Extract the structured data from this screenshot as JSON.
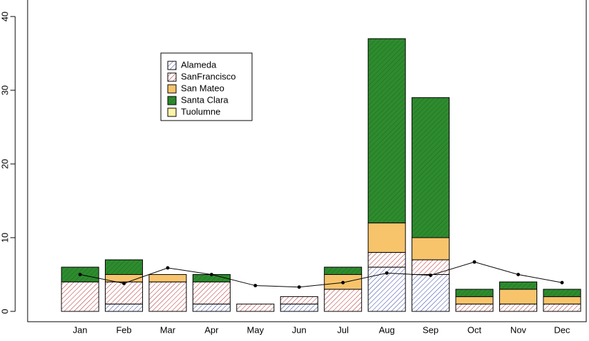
{
  "chart_data": {
    "type": "bar",
    "categories": [
      "Jan",
      "Feb",
      "Mar",
      "Apr",
      "May",
      "Jun",
      "Jul",
      "Aug",
      "Sep",
      "Oct",
      "Nov",
      "Dec"
    ],
    "stacked": true,
    "series": [
      {
        "name": "Alameda",
        "color": "#2a3aa0",
        "background": "#ffffff",
        "values": [
          0,
          1,
          0,
          1,
          0,
          1,
          0,
          6,
          5,
          0,
          0,
          0
        ]
      },
      {
        "name": "SanFrancisco",
        "color": "#b22222",
        "background": "#ffffff",
        "values": [
          4,
          3,
          4,
          3,
          1,
          1,
          3,
          2,
          2,
          1,
          1,
          1
        ]
      },
      {
        "name": "San Mateo",
        "color": "#f7c46c",
        "background": "#f7c46c",
        "values": [
          0,
          1,
          1,
          0,
          0,
          0,
          2,
          4,
          3,
          1,
          2,
          1
        ]
      },
      {
        "name": "Santa Clara",
        "color": "#1d6b1d",
        "background": "#2e8b2e",
        "values": [
          2,
          2,
          0,
          1,
          0,
          0,
          1,
          25,
          19,
          1,
          1,
          1
        ]
      },
      {
        "name": "Tuolumne",
        "color": "#fff3a8",
        "background": "#fff3a8",
        "values": [
          0,
          0,
          0,
          0,
          0,
          0,
          0,
          0,
          0,
          0,
          0,
          0
        ]
      }
    ],
    "line": {
      "color": "#000000",
      "values": [
        5,
        3.8,
        5.9,
        5,
        3.5,
        3.3,
        3.9,
        5.2,
        4.9,
        6.7,
        5,
        3.9
      ]
    },
    "ylim": [
      0,
      40
    ],
    "yticks": [
      0,
      10,
      20,
      30,
      40
    ]
  }
}
